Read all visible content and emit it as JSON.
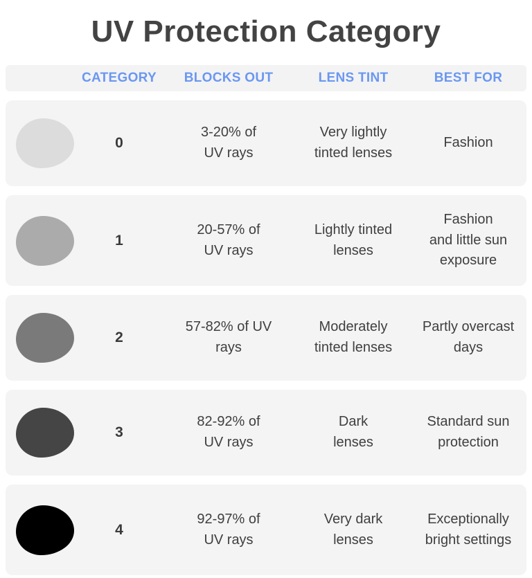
{
  "title": "UV Protection Category",
  "colors": {
    "accent_blue": "#6a97f1",
    "row_background": "#f4f4f4",
    "header_background": "#f3f3f4",
    "title_text": "#434343",
    "body_text": "#3f3f3f"
  },
  "header": {
    "labels": [
      "CATEGORY",
      "BLOCKS OUT",
      "LENS TINT",
      "BEST FOR"
    ]
  },
  "rows": [
    {
      "lens_icon": "lens-shade-0",
      "lens_color": "#dcdcdc",
      "category": "0",
      "blocks_out": "3-20% of\nUV rays",
      "lens_tint": "Very lightly\ntinted lenses",
      "best_for": "Fashion"
    },
    {
      "lens_icon": "lens-shade-1",
      "lens_color": "#ababab",
      "category": "1",
      "blocks_out": "20-57% of\nUV rays",
      "lens_tint": "Lightly tinted\nlenses",
      "best_for": "Fashion\nand little sun\nexposure"
    },
    {
      "lens_icon": "lens-shade-2",
      "lens_color": "#7a7a7a",
      "category": "2",
      "blocks_out": "57-82% of UV\nrays",
      "lens_tint": "Moderately\ntinted lenses",
      "best_for": "Partly overcast\ndays"
    },
    {
      "lens_icon": "lens-shade-3",
      "lens_color": "#454545",
      "category": "3",
      "blocks_out": "82-92% of\nUV rays",
      "lens_tint": "Dark\nlenses",
      "best_for": "Standard sun\nprotection"
    },
    {
      "lens_icon": "lens-shade-4",
      "lens_color": "#000000",
      "category": "4",
      "blocks_out": "92-97% of\nUV rays",
      "lens_tint": "Very dark\nlenses",
      "best_for": "Exceptionally\nbright settings"
    }
  ],
  "chart_data": {
    "type": "table",
    "title": "UV Protection Category",
    "columns": [
      "CATEGORY",
      "BLOCKS OUT",
      "LENS TINT",
      "BEST FOR"
    ],
    "rows": [
      {
        "category": 0,
        "blocks_out": "3-20% of UV rays",
        "lens_tint": "Very lightly tinted lenses",
        "best_for": "Fashion",
        "lens_shade_hex": "#dcdcdc"
      },
      {
        "category": 1,
        "blocks_out": "20-57% of UV rays",
        "lens_tint": "Lightly tinted lenses",
        "best_for": "Fashion and little sun exposure",
        "lens_shade_hex": "#ababab"
      },
      {
        "category": 2,
        "blocks_out": "57-82% of UV rays",
        "lens_tint": "Moderately tinted lenses",
        "best_for": "Partly overcast days",
        "lens_shade_hex": "#7a7a7a"
      },
      {
        "category": 3,
        "blocks_out": "82-92% of UV rays",
        "lens_tint": "Dark lenses",
        "best_for": "Standard sun protection",
        "lens_shade_hex": "#454545"
      },
      {
        "category": 4,
        "blocks_out": "92-97% of UV rays",
        "lens_tint": "Very dark lenses",
        "best_for": "Exceptionally bright settings",
        "lens_shade_hex": "#000000"
      }
    ]
  }
}
